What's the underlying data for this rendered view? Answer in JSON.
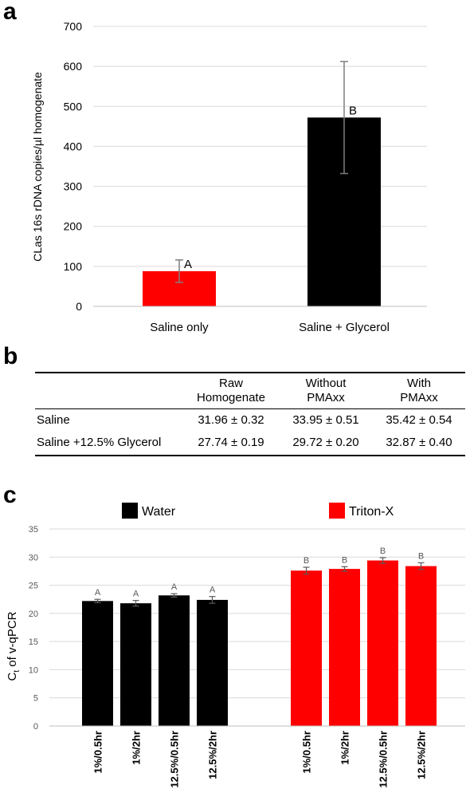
{
  "panels": {
    "a": "a",
    "b": "b",
    "c": "c"
  },
  "chart_data": [
    {
      "type": "bar",
      "panel": "a",
      "ylabel": "CLas 16s rDNA copies/µl homogenate",
      "xlabel": "",
      "ylim": [
        0,
        700
      ],
      "yticks": [
        0,
        100,
        200,
        300,
        400,
        500,
        600,
        700
      ],
      "grid": true,
      "categories": [
        "Saline only",
        "Saline + Glycerol"
      ],
      "values": [
        88,
        472
      ],
      "errors": [
        28,
        140
      ],
      "letters": [
        "A",
        "B"
      ],
      "colors": [
        "#ff0000",
        "#000000"
      ]
    },
    {
      "type": "bar",
      "panel": "c",
      "ylabel": "Ct of v-qPCR",
      "xlabel": "",
      "ylim": [
        0,
        35
      ],
      "yticks": [
        0,
        5,
        10,
        15,
        20,
        25,
        30,
        35
      ],
      "grid": true,
      "legend": "top",
      "categories": [
        "1%/0.5hr",
        "1%/2hr",
        "12.5%/0.5hr",
        "12.5%/2hr"
      ],
      "series": [
        {
          "name": "Water",
          "color": "#000000",
          "values": [
            22.2,
            21.8,
            23.2,
            22.4
          ],
          "errors": [
            0.3,
            0.5,
            0.3,
            0.6
          ],
          "letters": [
            "A",
            "A",
            "A",
            "A"
          ]
        },
        {
          "name": "Triton-X",
          "color": "#ff0000",
          "values": [
            27.6,
            27.9,
            29.4,
            28.4
          ],
          "errors": [
            0.6,
            0.4,
            0.5,
            0.6
          ],
          "letters": [
            "B",
            "B",
            "B",
            "B"
          ]
        }
      ]
    }
  ],
  "table_b": {
    "headers": [
      [
        "Raw",
        "Homogenate"
      ],
      [
        "Without",
        "PMAxx"
      ],
      [
        "With",
        "PMAxx"
      ]
    ],
    "rows": [
      {
        "label": "Saline",
        "values": [
          "31.96 ± 0.32",
          "33.95 ± 0.51",
          "35.42 ± 0.54"
        ]
      },
      {
        "label": "Saline +12.5% Glycerol",
        "values": [
          "27.74 ± 0.19",
          "29.72 ± 0.20",
          "32.87 ± 0.40"
        ]
      }
    ]
  }
}
